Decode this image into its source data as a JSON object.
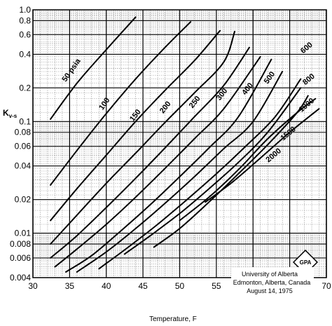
{
  "chart_data": {
    "type": "line",
    "xlabel": "Temperature, F",
    "ylabel": "K",
    "ylabel_subscript": "v-s",
    "xlim": [
      30,
      70
    ],
    "ylim": [
      0.004,
      1.0
    ],
    "y_scale": "log",
    "grid": true,
    "x_ticks": [
      "30",
      "35",
      "40",
      "45",
      "50",
      "55",
      "60",
      "65",
      "70"
    ],
    "y_ticks": [
      {
        "v": 1.0,
        "label": "1.0"
      },
      {
        "v": 0.8,
        "label": "0.8"
      },
      {
        "v": 0.6,
        "label": "0.6"
      },
      {
        "v": 0.4,
        "label": "0.4"
      },
      {
        "v": 0.2,
        "label": "0.2"
      },
      {
        "v": 0.1,
        "label": "0.1"
      },
      {
        "v": 0.08,
        "label": "0.08"
      },
      {
        "v": 0.06,
        "label": "0.06"
      },
      {
        "v": 0.04,
        "label": "0.04"
      },
      {
        "v": 0.02,
        "label": "0.02"
      },
      {
        "v": 0.01,
        "label": "0.01"
      },
      {
        "v": 0.008,
        "label": "0.008"
      },
      {
        "v": 0.006,
        "label": "0.006"
      },
      {
        "v": 0.004,
        "label": "0.004"
      }
    ],
    "series": [
      {
        "name": "50 psia",
        "x": [
          32.4,
          36,
          40,
          44
        ],
        "y": [
          0.105,
          0.22,
          0.44,
          0.86
        ]
      },
      {
        "name": "100",
        "x": [
          32.4,
          36,
          40,
          44,
          48,
          51.5
        ],
        "y": [
          0.027,
          0.055,
          0.118,
          0.24,
          0.46,
          0.78
        ]
      },
      {
        "name": "150",
        "x": [
          32.4,
          36,
          40,
          44,
          48,
          52,
          55.5
        ],
        "y": [
          0.013,
          0.025,
          0.05,
          0.1,
          0.19,
          0.35,
          0.65
        ]
      },
      {
        "name": "200",
        "x": [
          32.4,
          36,
          40,
          44,
          48,
          52,
          56,
          57.5
        ],
        "y": [
          0.008,
          0.0145,
          0.028,
          0.052,
          0.098,
          0.18,
          0.34,
          0.64
        ]
      },
      {
        "name": "250",
        "x": [
          32.4,
          36,
          40,
          44,
          48,
          52,
          56,
          59.5
        ],
        "y": [
          0.006,
          0.0095,
          0.017,
          0.031,
          0.058,
          0.11,
          0.21,
          0.46
        ]
      },
      {
        "name": "300",
        "x": [
          33,
          36,
          40,
          44,
          48,
          52,
          56,
          61
        ],
        "y": [
          0.005,
          0.0072,
          0.012,
          0.021,
          0.038,
          0.07,
          0.13,
          0.38
        ]
      },
      {
        "name": "400",
        "x": [
          34.5,
          38,
          42,
          46,
          50,
          54,
          58,
          62.5
        ],
        "y": [
          0.0045,
          0.0063,
          0.0105,
          0.018,
          0.032,
          0.058,
          0.11,
          0.36
        ]
      },
      {
        "name": "500",
        "x": [
          36,
          40,
          44,
          48,
          52,
          56,
          60,
          64
        ],
        "y": [
          0.0045,
          0.0068,
          0.011,
          0.0185,
          0.032,
          0.057,
          0.1,
          0.28
        ]
      },
      {
        "name": "600",
        "x": [
          39,
          43,
          47,
          51,
          55,
          59,
          63,
          66.5
        ],
        "y": [
          0.0048,
          0.0075,
          0.012,
          0.02,
          0.034,
          0.06,
          0.11,
          0.24
        ]
      },
      {
        "name": "800",
        "x": [
          42.5,
          46,
          50,
          54,
          58,
          62,
          66.5
        ],
        "y": [
          0.0065,
          0.0095,
          0.015,
          0.025,
          0.043,
          0.08,
          0.2
        ]
      },
      {
        "name": "1000",
        "x": [
          46.5,
          50,
          54,
          58,
          62,
          66,
          67.5
        ],
        "y": [
          0.0075,
          0.011,
          0.019,
          0.034,
          0.062,
          0.12,
          0.17
        ]
      },
      {
        "name": "1500",
        "x": [
          50,
          54,
          58,
          62,
          66,
          68.5
        ],
        "y": [
          0.013,
          0.021,
          0.037,
          0.07,
          0.12,
          0.16
        ]
      },
      {
        "name": "2000",
        "x": [
          53.5,
          57,
          61,
          65,
          69
        ],
        "y": [
          0.019,
          0.028,
          0.047,
          0.08,
          0.13
        ]
      }
    ],
    "labels": [
      {
        "text": "50 psia",
        "x": 35.5,
        "y": 0.28,
        "angle": -55
      },
      {
        "text": "100",
        "x": 40,
        "y": 0.14,
        "angle": -55
      },
      {
        "text": "150",
        "x": 44.2,
        "y": 0.11,
        "angle": -52
      },
      {
        "text": "200",
        "x": 48.3,
        "y": 0.13,
        "angle": -52
      },
      {
        "text": "250",
        "x": 52.3,
        "y": 0.145,
        "angle": -52
      },
      {
        "text": "300",
        "x": 56,
        "y": 0.17,
        "angle": -52
      },
      {
        "text": "400",
        "x": 59.5,
        "y": 0.19,
        "angle": -52
      },
      {
        "text": "500",
        "x": 62.5,
        "y": 0.24,
        "angle": -55
      },
      {
        "text": "600",
        "x": 67.5,
        "y": 0.44,
        "angle": -40
      },
      {
        "text": "800",
        "x": 67.8,
        "y": 0.23,
        "angle": -40
      },
      {
        "text": "1000",
        "x": 67.5,
        "y": 0.135,
        "angle": -40
      },
      {
        "text": "1500",
        "x": 65,
        "y": 0.075,
        "angle": -40
      },
      {
        "text": "2000",
        "x": 63,
        "y": 0.048,
        "angle": -40
      }
    ],
    "annotations": [
      "University of Alberta",
      "Edmonton, Alberta, Canada",
      "August 14, 1975"
    ],
    "logo_text": "GPA"
  }
}
